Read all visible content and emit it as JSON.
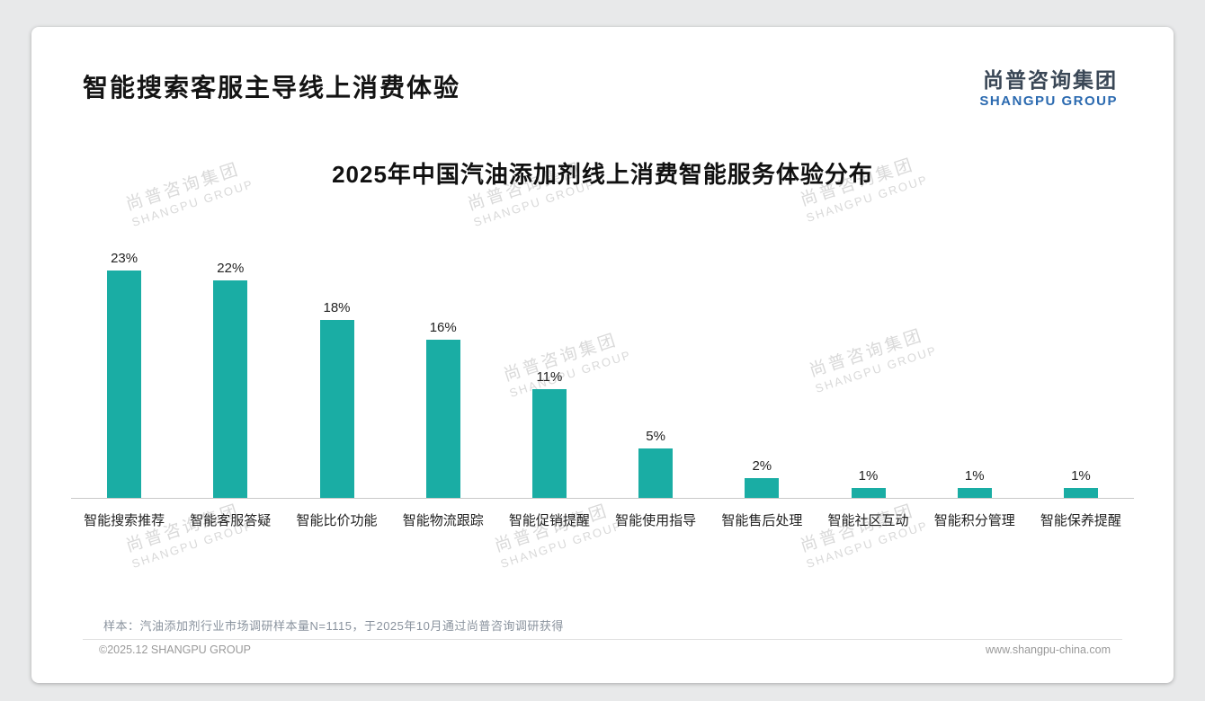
{
  "page": {
    "title": "智能搜索客服主导线上消费体验",
    "footer_note": "样本：汽油添加剂行业市场调研样本量N=1115，于2025年10月通过尚普咨询调研获得",
    "copyright": "©2025.12 SHANGPU GROUP",
    "website": "www.shangpu-china.com"
  },
  "logo": {
    "cn": "尚普咨询集团",
    "en": "SHANGPU GROUP"
  },
  "watermark": {
    "cn": "尚普咨询集团",
    "en": "SHANGPU GROUP"
  },
  "colors": {
    "bar": "#1aada4",
    "logo_blue": "#2b6ab0",
    "logo_dark": "#3a4756",
    "axis": "#c9c9c9"
  },
  "chart_data": {
    "type": "bar",
    "title": "2025年中国汽油添加剂线上消费智能服务体验分布",
    "categories": [
      "智能搜索推荐",
      "智能客服答疑",
      "智能比价功能",
      "智能物流跟踪",
      "智能促销提醒",
      "智能使用指导",
      "智能售后处理",
      "智能社区互动",
      "智能积分管理",
      "智能保养提醒"
    ],
    "values": [
      23,
      22,
      18,
      16,
      11,
      5,
      2,
      1,
      1,
      1
    ],
    "value_labels": [
      "23%",
      "22%",
      "18%",
      "16%",
      "11%",
      "5%",
      "2%",
      "1%",
      "1%",
      "1%"
    ],
    "unit": "%",
    "xlabel": "",
    "ylabel": "",
    "ylim": [
      0,
      25
    ],
    "grid": false,
    "legend": false,
    "bar_color": "#1aada4"
  }
}
